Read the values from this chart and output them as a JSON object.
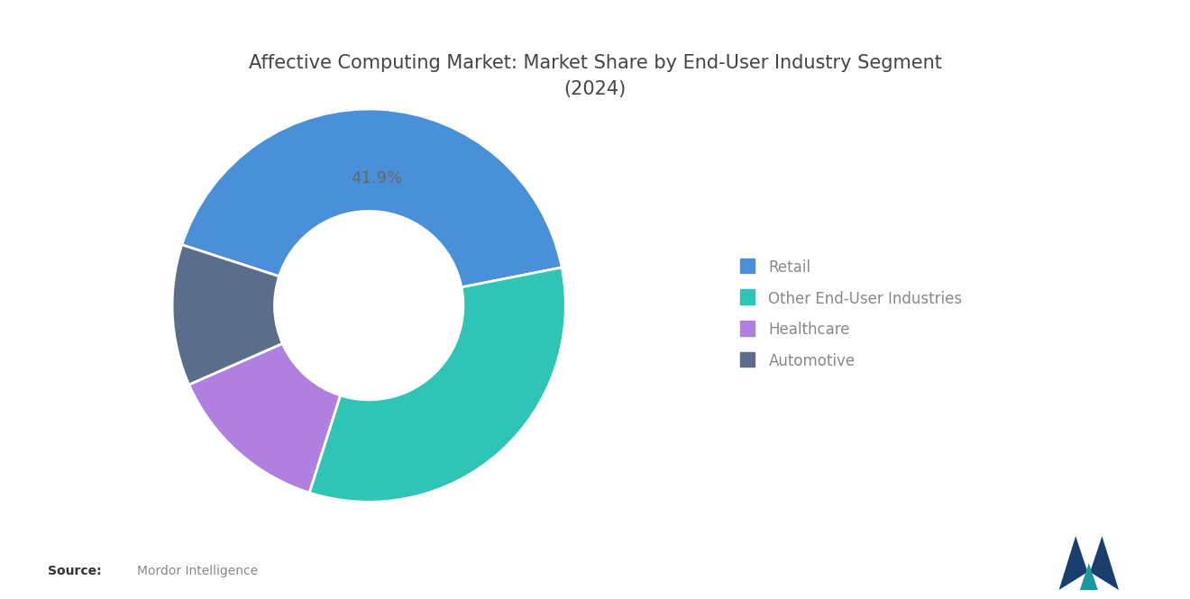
{
  "title": "Affective Computing Market: Market Share by End-User Industry Segment\n(2024)",
  "segments": [
    "Retail",
    "Other End-User Industries",
    "Healthcare",
    "Automotive"
  ],
  "values": [
    41.9,
    33.0,
    13.5,
    11.6
  ],
  "colors": [
    "#4A90D9",
    "#2EC4B6",
    "#B07FE0",
    "#5A6E8C"
  ],
  "label_text": "41.9%",
  "source_bold": "Source:",
  "source_text": "Mordor Intelligence",
  "background_color": "#FFFFFF",
  "title_fontsize": 15,
  "legend_fontsize": 12,
  "label_fontsize": 13,
  "start_angle": 162
}
